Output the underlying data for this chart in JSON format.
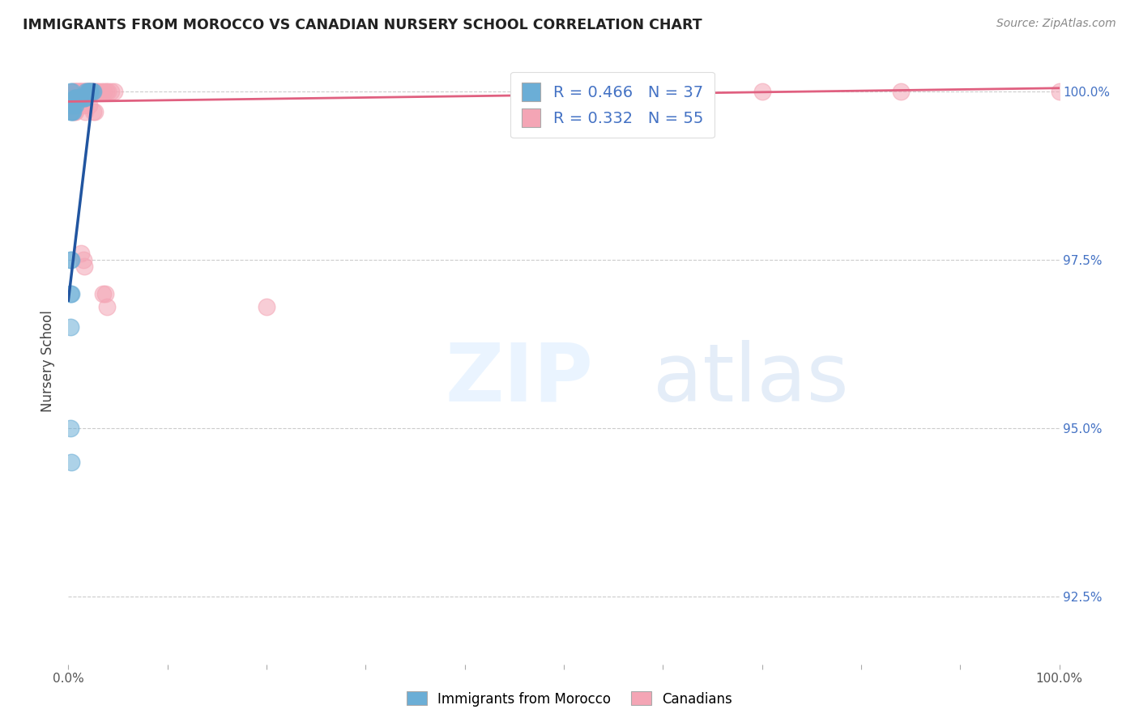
{
  "title": "IMMIGRANTS FROM MOROCCO VS CANADIAN NURSERY SCHOOL CORRELATION CHART",
  "source": "Source: ZipAtlas.com",
  "ylabel": "Nursery School",
  "legend_blue_R": "R = 0.466",
  "legend_blue_N": "N = 37",
  "legend_pink_R": "R = 0.332",
  "legend_pink_N": "N = 55",
  "legend_label_blue": "Immigrants from Morocco",
  "legend_label_pink": "Canadians",
  "blue_color": "#6baed6",
  "pink_color": "#f4a5b5",
  "blue_line_color": "#2155a0",
  "pink_line_color": "#e06080",
  "xlim": [
    0.0,
    1.0
  ],
  "ylim": [
    0.915,
    1.005
  ],
  "ytick_vals": [
    0.925,
    0.95,
    0.975,
    1.0
  ],
  "ytick_labels": [
    "92.5%",
    "95.0%",
    "97.5%",
    "100.0%"
  ],
  "blue_x": [
    0.002,
    0.004,
    0.006,
    0.007,
    0.008,
    0.009,
    0.01,
    0.011,
    0.012,
    0.013,
    0.014,
    0.015,
    0.016,
    0.017,
    0.018,
    0.019,
    0.02,
    0.021,
    0.022,
    0.023,
    0.024,
    0.025,
    0.003,
    0.005,
    0.006,
    0.007,
    0.002,
    0.003,
    0.004,
    0.005,
    0.002,
    0.003,
    0.002,
    0.003,
    0.002,
    0.002,
    0.003
  ],
  "blue_y": [
    1.0,
    1.0,
    0.999,
    0.999,
    0.999,
    0.999,
    0.999,
    0.999,
    0.999,
    0.999,
    0.999,
    0.999,
    0.999,
    0.999,
    1.0,
    1.0,
    1.0,
    1.0,
    1.0,
    1.0,
    1.0,
    1.0,
    0.998,
    0.998,
    0.998,
    0.998,
    0.997,
    0.997,
    0.997,
    0.997,
    0.975,
    0.975,
    0.97,
    0.97,
    0.965,
    0.95,
    0.945
  ],
  "pink_x": [
    0.002,
    0.003,
    0.004,
    0.005,
    0.006,
    0.007,
    0.008,
    0.009,
    0.01,
    0.011,
    0.012,
    0.013,
    0.014,
    0.015,
    0.016,
    0.017,
    0.018,
    0.019,
    0.02,
    0.021,
    0.022,
    0.023,
    0.024,
    0.025,
    0.026,
    0.028,
    0.03,
    0.033,
    0.036,
    0.038,
    0.04,
    0.043,
    0.046,
    0.7,
    0.84,
    1.0,
    0.008,
    0.01,
    0.015,
    0.017,
    0.021,
    0.025,
    0.027,
    0.013,
    0.015,
    0.016,
    0.035,
    0.037,
    0.039,
    0.2,
    0.003,
    0.004,
    0.005,
    0.006,
    0.007
  ],
  "pink_y": [
    0.999,
    0.999,
    0.999,
    1.0,
    1.0,
    1.0,
    1.0,
    1.0,
    1.0,
    1.0,
    1.0,
    1.0,
    1.0,
    1.0,
    1.0,
    1.0,
    1.0,
    1.0,
    1.0,
    1.0,
    1.0,
    1.0,
    1.0,
    1.0,
    1.0,
    1.0,
    1.0,
    1.0,
    1.0,
    1.0,
    1.0,
    1.0,
    1.0,
    1.0,
    1.0,
    1.0,
    0.998,
    0.998,
    0.998,
    0.997,
    0.998,
    0.997,
    0.997,
    0.976,
    0.975,
    0.974,
    0.97,
    0.97,
    0.968,
    0.968,
    0.998,
    0.998,
    0.997,
    0.997,
    0.997
  ],
  "blue_line_x": [
    0.0,
    0.026
  ],
  "blue_line_y_start": 0.969,
  "blue_line_y_end": 1.001,
  "pink_line_x": [
    0.0,
    1.0
  ],
  "pink_line_y_start": 0.9985,
  "pink_line_y_end": 1.0005
}
